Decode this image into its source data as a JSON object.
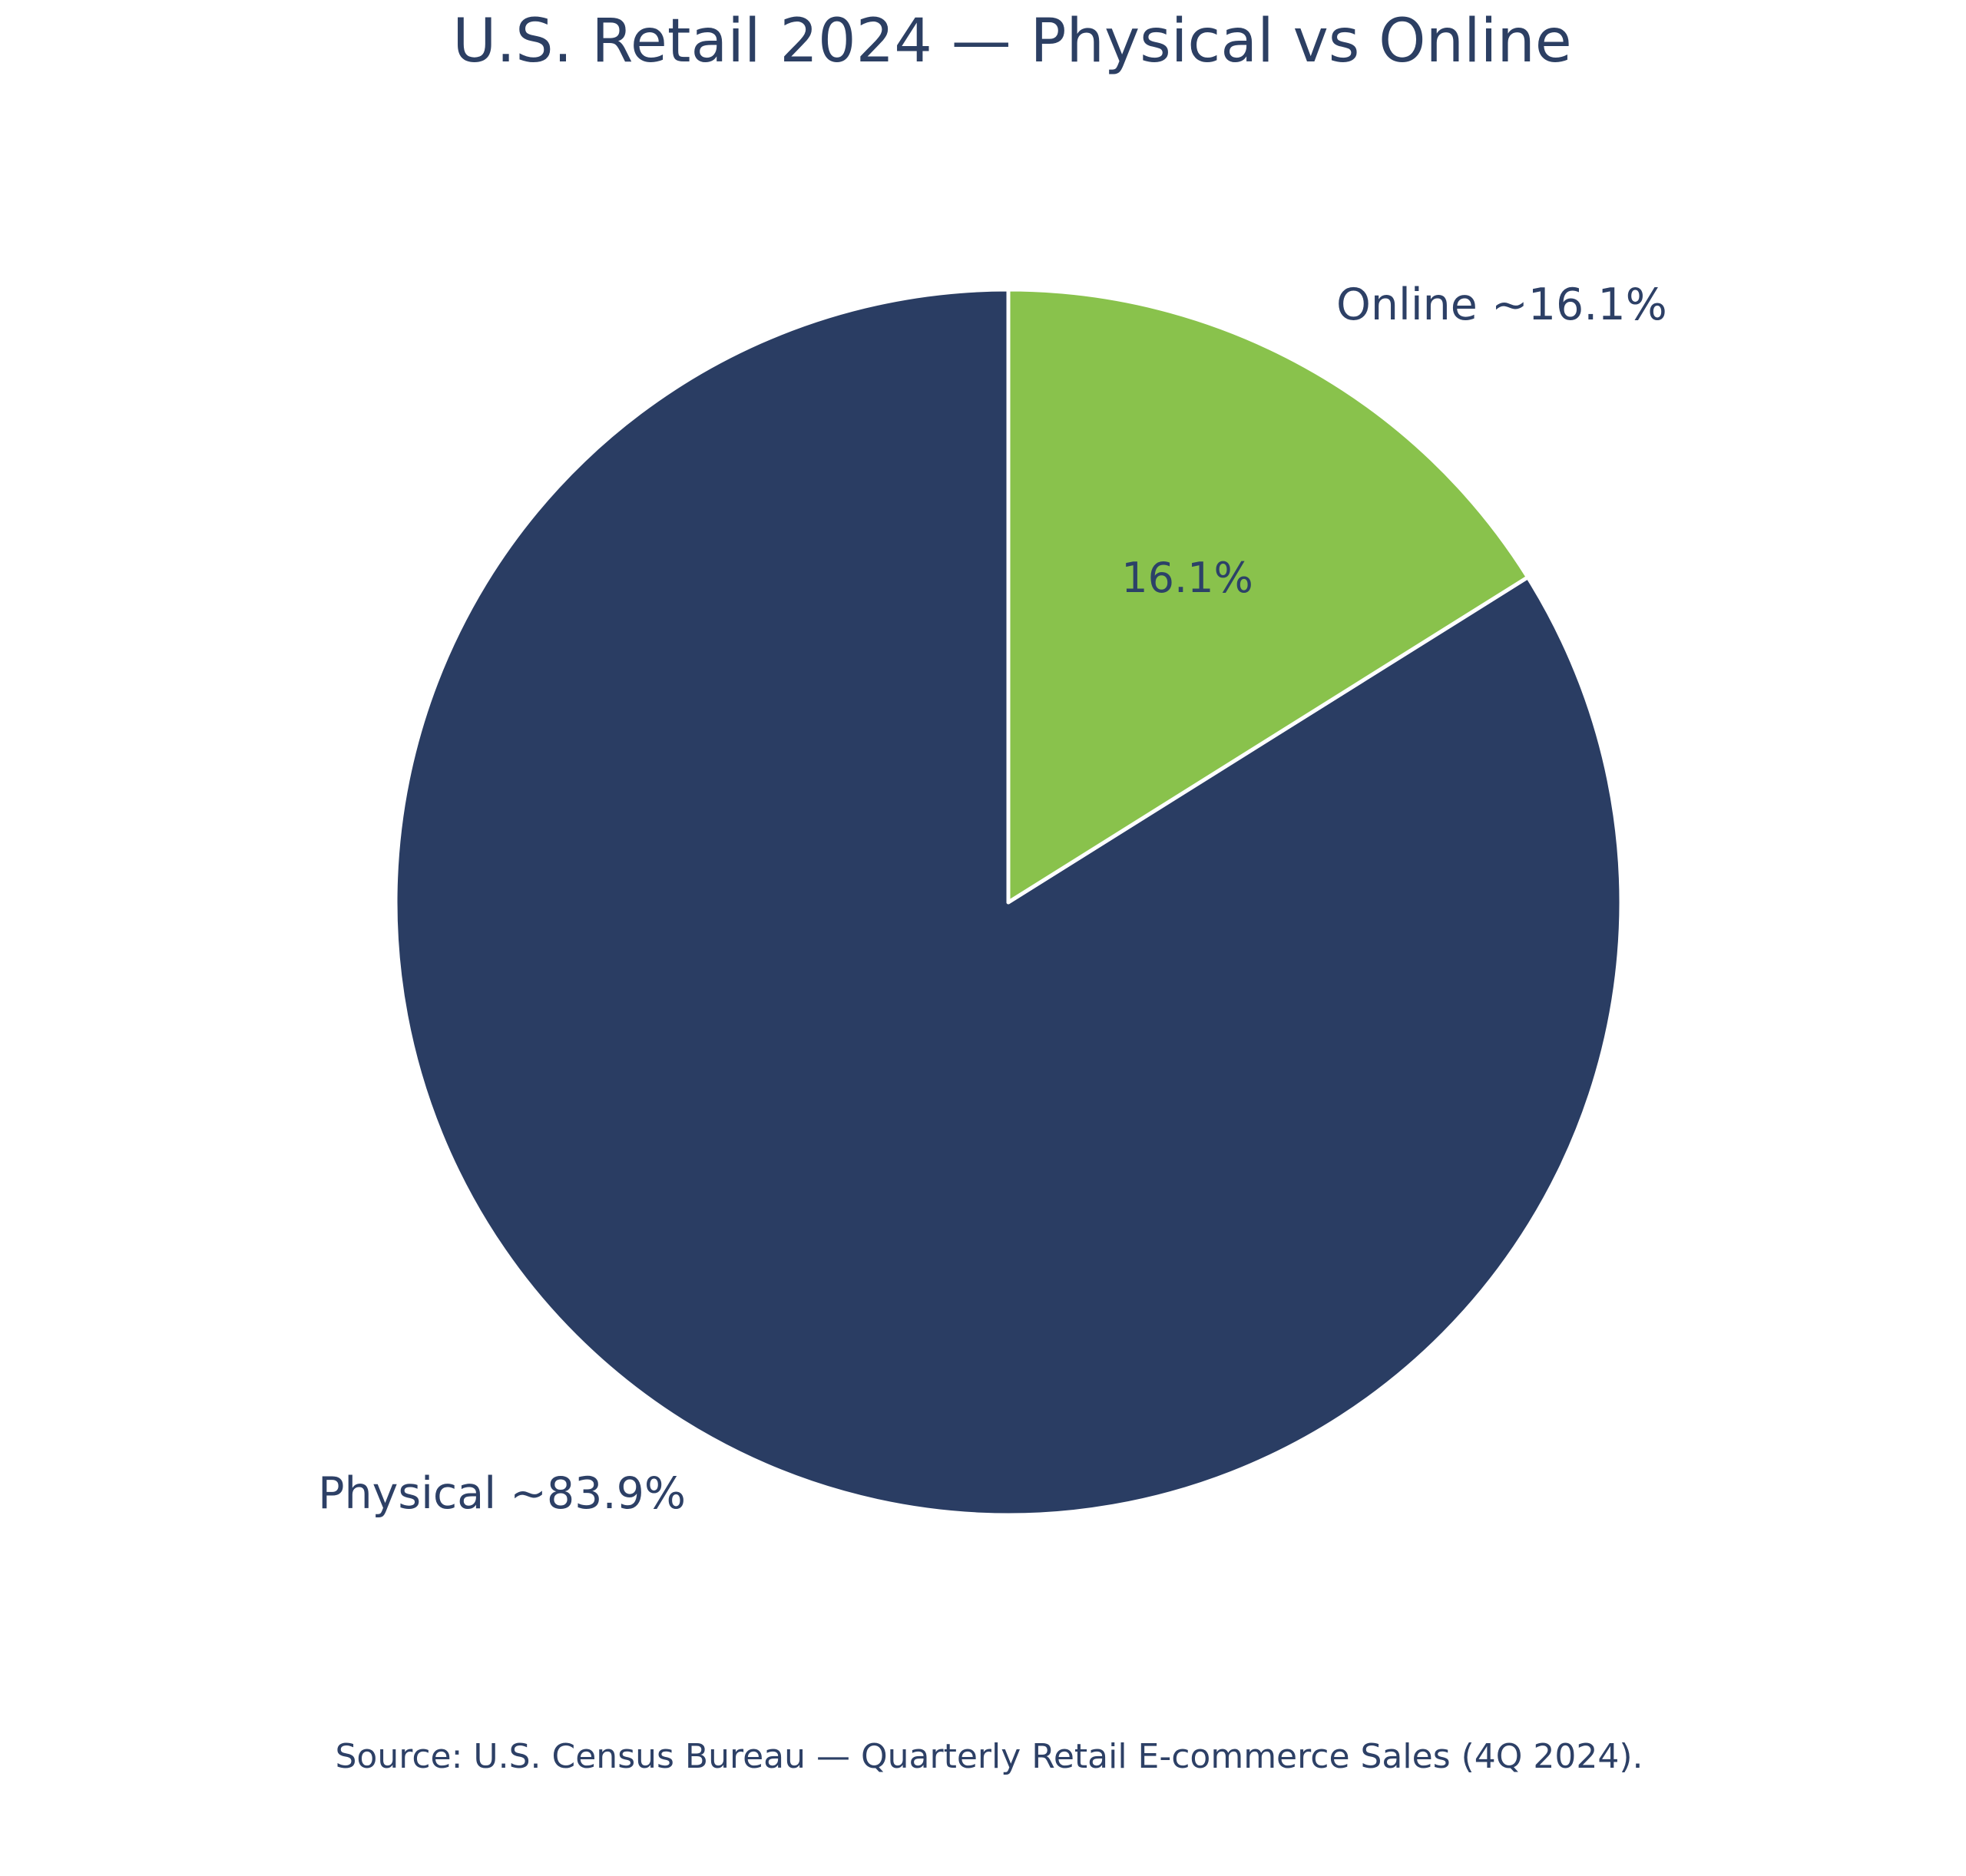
{
  "page": {
    "background_color": "#ffffff",
    "text_color": "#2d4066"
  },
  "chart_data": {
    "type": "pie",
    "title": "U.S. Retail 2024 — Physical vs Online",
    "start_angle": 90,
    "direction": "counterclockwise",
    "legend": "none",
    "wedge_edge_color": "#ffffff",
    "slices": [
      {
        "label": "Physical",
        "value": 83.9,
        "color": "#2a3d63",
        "outside_label": "Physical ~83.9%"
      },
      {
        "label": "Online",
        "value": 16.1,
        "color": "#89c24c",
        "outside_label": "Online ~16.1%",
        "inside_label": "16.1%"
      }
    ]
  },
  "footer": {
    "source": "Source: U.S. Census Bureau — Quarterly Retail E-commerce Sales (4Q 2024)."
  }
}
